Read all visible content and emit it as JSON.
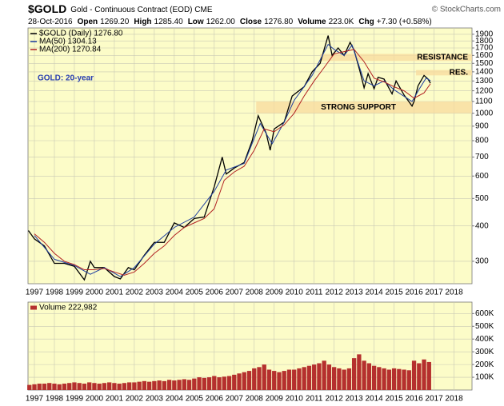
{
  "chart_data": [
    {
      "type": "line",
      "title": "$GOLD",
      "subtitle": "Gold - Continuous Contract (EOD) CME",
      "source": "© StockCharts.com",
      "date": "28-Oct-2016",
      "quote": [
        {
          "label": "Open",
          "value": "1269.20"
        },
        {
          "label": "High",
          "value": "1285.40"
        },
        {
          "label": "Low",
          "value": "1262.00"
        },
        {
          "label": "Close",
          "value": "1276.80"
        },
        {
          "label": "Volume",
          "value": "223.0K"
        },
        {
          "label": "Chg",
          "value": "+7.30 (+0.58%)"
        }
      ],
      "annotation": "GOLD: 20-year",
      "log_scale": true,
      "grid": true,
      "xlim": [
        1996.68,
        2018.9
      ],
      "xticks": [
        1997,
        1998,
        1999,
        2000,
        2001,
        2002,
        2003,
        2004,
        2005,
        2006,
        2007,
        2008,
        2009,
        2010,
        2011,
        2012,
        2013,
        2014,
        2015,
        2016,
        2017,
        2018
      ],
      "ylim": [
        250,
        2000
      ],
      "yticks": [
        300,
        400,
        500,
        600,
        700,
        800,
        900,
        1000,
        1100,
        1200,
        1300,
        1400,
        1500,
        1600,
        1700,
        1800,
        1900
      ],
      "bands": [
        {
          "label": "RESISTANCE",
          "xlim": [
            2011.3,
            2018.9
          ],
          "ylim": [
            1530,
            1620
          ]
        },
        {
          "label": "RES.",
          "xlim": [
            2016.1,
            2018.9
          ],
          "ylim": [
            1360,
            1420
          ]
        },
        {
          "label": "STRONG SUPPORT",
          "xlim": [
            2008.1,
            2018.9
          ],
          "ylim": [
            1000,
            1100
          ]
        }
      ],
      "series": [
        {
          "name": "$GOLD (Daily) 1276.80",
          "color": "#000000",
          "x": [
            1996.7,
            1997.0,
            1997.5,
            1998.0,
            1998.5,
            1999.0,
            1999.5,
            1999.8,
            2000.0,
            2000.5,
            2001.0,
            2001.3,
            2001.7,
            2002.0,
            2002.5,
            2003.0,
            2003.5,
            2004.0,
            2004.5,
            2005.0,
            2005.5,
            2006.0,
            2006.4,
            2006.6,
            2007.0,
            2007.5,
            2007.9,
            2008.2,
            2008.6,
            2008.8,
            2009.0,
            2009.5,
            2009.9,
            2010.5,
            2010.9,
            2011.3,
            2011.7,
            2011.9,
            2012.2,
            2012.5,
            2012.8,
            2013.0,
            2013.3,
            2013.5,
            2013.7,
            2014.0,
            2014.2,
            2014.5,
            2014.9,
            2015.1,
            2015.5,
            2015.9,
            2016.0,
            2016.2,
            2016.5,
            2016.7,
            2016.82
          ],
          "values": [
            385,
            360,
            340,
            295,
            295,
            288,
            258,
            300,
            285,
            285,
            265,
            260,
            285,
            280,
            315,
            350,
            350,
            410,
            395,
            425,
            430,
            550,
            700,
            610,
            640,
            670,
            800,
            980,
            850,
            740,
            880,
            930,
            1150,
            1240,
            1400,
            1500,
            1880,
            1600,
            1700,
            1600,
            1780,
            1670,
            1400,
            1230,
            1380,
            1220,
            1340,
            1320,
            1170,
            1300,
            1160,
            1060,
            1100,
            1250,
            1360,
            1320,
            1277
          ]
        },
        {
          "name": "MA(50) 1304.13",
          "color": "#1f3f9f",
          "x": [
            1997.0,
            1998.0,
            1999.0,
            1999.8,
            2000.5,
            2001.3,
            2002.0,
            2003.0,
            2004.0,
            2005.0,
            2006.0,
            2006.6,
            2007.5,
            2008.3,
            2008.9,
            2009.5,
            2010.0,
            2010.9,
            2011.7,
            2012.0,
            2012.5,
            2012.9,
            2013.5,
            2014.0,
            2014.5,
            2015.0,
            2015.9,
            2016.3,
            2016.6,
            2016.82
          ],
          "values": [
            370,
            305,
            290,
            270,
            285,
            265,
            285,
            345,
            395,
            430,
            530,
            630,
            665,
            920,
            780,
            930,
            1110,
            1360,
            1750,
            1680,
            1600,
            1740,
            1300,
            1250,
            1300,
            1210,
            1100,
            1230,
            1330,
            1304
          ]
        },
        {
          "name": "MA(200) 1270.84",
          "color": "#b22222",
          "x": [
            1997.0,
            1997.5,
            1998.0,
            1998.5,
            1999.0,
            1999.5,
            2000.0,
            2000.5,
            2001.0,
            2001.5,
            2002.0,
            2002.5,
            2003.0,
            2003.5,
            2004.0,
            2004.5,
            2005.0,
            2005.5,
            2006.0,
            2006.5,
            2007.0,
            2007.5,
            2008.0,
            2008.5,
            2009.0,
            2009.5,
            2010.0,
            2010.5,
            2011.0,
            2011.5,
            2012.0,
            2012.5,
            2013.0,
            2013.5,
            2014.0,
            2014.5,
            2015.0,
            2015.5,
            2016.0,
            2016.5,
            2016.82
          ],
          "values": [
            375,
            350,
            320,
            300,
            292,
            280,
            280,
            283,
            275,
            268,
            275,
            295,
            320,
            340,
            370,
            395,
            410,
            425,
            460,
            580,
            620,
            650,
            740,
            880,
            860,
            910,
            1000,
            1150,
            1300,
            1450,
            1620,
            1650,
            1680,
            1520,
            1330,
            1290,
            1240,
            1200,
            1130,
            1180,
            1271
          ]
        }
      ]
    },
    {
      "type": "bar",
      "grid": true,
      "xlim": [
        1996.68,
        2018.9
      ],
      "xticks": [
        1997,
        1998,
        1999,
        2000,
        2001,
        2002,
        2003,
        2004,
        2005,
        2006,
        2007,
        2008,
        2009,
        2010,
        2011,
        2012,
        2013,
        2014,
        2015,
        2016,
        2017,
        2018
      ],
      "ylim": [
        0,
        690000
      ],
      "yticks": [
        {
          "value": 100000,
          "label": "100K"
        },
        {
          "value": 200000,
          "label": "200K"
        },
        {
          "value": 300000,
          "label": "300K"
        },
        {
          "value": 400000,
          "label": "400K"
        },
        {
          "value": 500000,
          "label": "500K"
        },
        {
          "value": 600000,
          "label": "600K"
        }
      ],
      "series": [
        {
          "name": "Volume 222,982",
          "color": "#b5302e",
          "x": [
            1996.75,
            1997.0,
            1997.25,
            1997.5,
            1997.75,
            1998.0,
            1998.25,
            1998.5,
            1998.75,
            1999.0,
            1999.25,
            1999.5,
            1999.75,
            2000.0,
            2000.25,
            2000.5,
            2000.75,
            2001.0,
            2001.25,
            2001.5,
            2001.75,
            2002.0,
            2002.25,
            2002.5,
            2002.75,
            2003.0,
            2003.25,
            2003.5,
            2003.75,
            2004.0,
            2004.25,
            2004.5,
            2004.75,
            2005.0,
            2005.25,
            2005.5,
            2005.75,
            2006.0,
            2006.25,
            2006.5,
            2006.75,
            2007.0,
            2007.25,
            2007.5,
            2007.75,
            2008.0,
            2008.25,
            2008.5,
            2008.75,
            2009.0,
            2009.25,
            2009.5,
            2009.75,
            2010.0,
            2010.25,
            2010.5,
            2010.75,
            2011.0,
            2011.25,
            2011.5,
            2011.75,
            2012.0,
            2012.25,
            2012.5,
            2012.75,
            2013.0,
            2013.25,
            2013.5,
            2013.75,
            2014.0,
            2014.25,
            2014.5,
            2014.75,
            2015.0,
            2015.25,
            2015.5,
            2015.75,
            2016.0,
            2016.25,
            2016.5,
            2016.75
          ],
          "values": [
            40000,
            45000,
            50000,
            50000,
            55000,
            50000,
            45000,
            50000,
            55000,
            60000,
            55000,
            50000,
            60000,
            55000,
            50000,
            55000,
            60000,
            55000,
            50000,
            55000,
            60000,
            60000,
            65000,
            70000,
            65000,
            70000,
            75000,
            70000,
            80000,
            75000,
            80000,
            85000,
            80000,
            90000,
            100000,
            95000,
            100000,
            110000,
            100000,
            105000,
            110000,
            120000,
            130000,
            140000,
            150000,
            170000,
            180000,
            200000,
            160000,
            150000,
            140000,
            150000,
            160000,
            160000,
            170000,
            180000,
            190000,
            200000,
            210000,
            230000,
            200000,
            180000,
            170000,
            160000,
            170000,
            250000,
            280000,
            230000,
            210000,
            190000,
            180000,
            170000,
            160000,
            170000,
            165000,
            160000,
            155000,
            230000,
            210000,
            240000,
            220000
          ]
        }
      ]
    }
  ]
}
